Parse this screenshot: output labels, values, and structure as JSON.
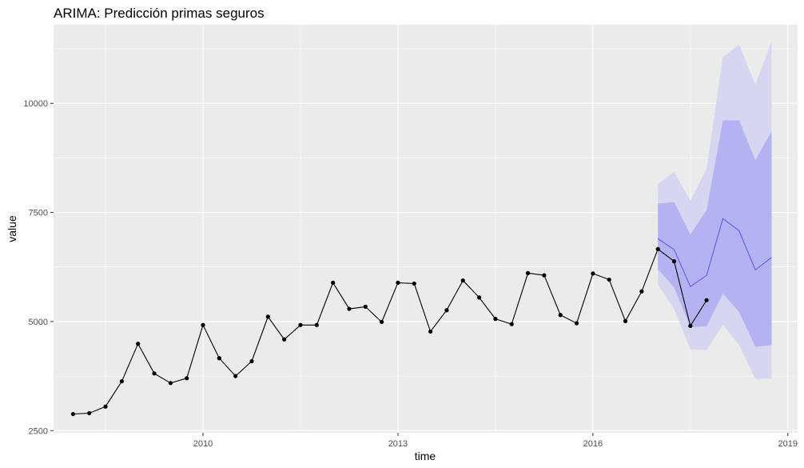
{
  "chart_data": {
    "type": "line",
    "title": "ARIMA: Predicción primas seguros",
    "xlabel": "time",
    "ylabel": "value",
    "xlim": [
      2007.7,
      2019.15
    ],
    "ylim": [
      2450,
      11800
    ],
    "x_ticks": [
      2010,
      2013,
      2016,
      2019
    ],
    "x_tick_labels": [
      "2010",
      "2013",
      "2016",
      "2019"
    ],
    "y_ticks": [
      2500,
      5000,
      7500,
      10000
    ],
    "y_tick_labels": [
      "2500",
      "5000",
      "7500",
      "10000"
    ],
    "grid": true,
    "legend": "none",
    "colors": {
      "panel": "#ebebeb",
      "grid": "#ffffff",
      "observed": "#000000",
      "forecast": "#5555ee",
      "band80": "#b3b3f2",
      "band95": "#d6d6f0"
    },
    "series": [
      {
        "role": "observed",
        "x": [
          2008.0,
          2008.25,
          2008.5,
          2008.75,
          2009.0,
          2009.25,
          2009.5,
          2009.75,
          2010.0,
          2010.25,
          2010.5,
          2010.75,
          2011.0,
          2011.25,
          2011.5,
          2011.75,
          2012.0,
          2012.25,
          2012.5,
          2012.75,
          2013.0,
          2013.25,
          2013.5,
          2013.75,
          2014.0,
          2014.25,
          2014.5,
          2014.75,
          2015.0,
          2015.25,
          2015.5,
          2015.75,
          2016.0,
          2016.25,
          2016.5,
          2016.75,
          2017.0,
          2017.25,
          2017.5,
          2017.75
        ],
        "values": [
          2880,
          2900,
          3050,
          3630,
          4490,
          3810,
          3590,
          3700,
          4920,
          4160,
          3750,
          4090,
          5110,
          4590,
          4920,
          4920,
          5890,
          5290,
          5340,
          4990,
          5890,
          5870,
          4770,
          5260,
          5940,
          5550,
          5060,
          4940,
          6110,
          6060,
          5150,
          4960,
          6100,
          5960,
          5010,
          5690,
          6660,
          6380,
          4900,
          5490
        ]
      },
      {
        "role": "forecast",
        "x": [
          2017.0,
          2017.25,
          2017.5,
          2017.75,
          2018.0,
          2018.25,
          2018.5,
          2018.75
        ],
        "values": [
          6900,
          6650,
          5800,
          6060,
          7360,
          7080,
          6180,
          6470
        ],
        "lo80": [
          6200,
          5780,
          4870,
          4890,
          5640,
          5220,
          4420,
          4460
        ],
        "hi80": [
          7700,
          7740,
          6990,
          7560,
          9610,
          9610,
          8700,
          9360
        ],
        "lo95": [
          5840,
          5290,
          4360,
          4350,
          4920,
          4460,
          3680,
          3690
        ],
        "hi95": [
          8150,
          8430,
          7770,
          8510,
          11060,
          11350,
          10430,
          11420
        ]
      }
    ]
  }
}
